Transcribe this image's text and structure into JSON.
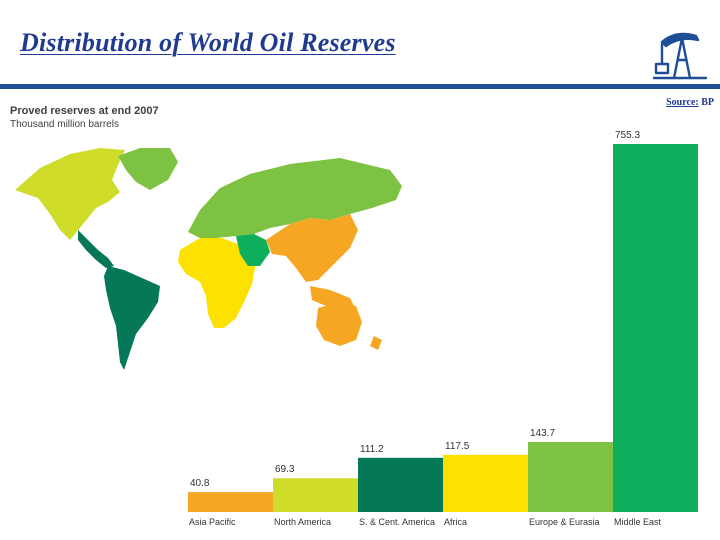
{
  "slide": {
    "title": "Distribution of World Oil Reserves",
    "source_label": "Source:",
    "source_value": "BP"
  },
  "icons": {
    "logo": "oil-pump-icon",
    "map": "world-map-image"
  },
  "colors": {
    "title": "#1f3a8f",
    "rule": "#1f4e96"
  },
  "chart_data": {
    "type": "bar",
    "title": "Proved reserves at end 2007",
    "subtitle": "Thousand million barrels",
    "categories": [
      "Asia Pacific",
      "North America",
      "S. & Cent. America",
      "Africa",
      "Europe & Eurasia",
      "Middle East"
    ],
    "values": [
      40.8,
      69.3,
      111.2,
      117.5,
      143.7,
      755.3
    ],
    "value_labels": [
      "40.8",
      "69.3",
      "111.2",
      "117.5",
      "143.7",
      "755.3"
    ],
    "colors": [
      "#f5a623",
      "#cfdc2a",
      "#047857",
      "#fde100",
      "#7dc242",
      "#0fae5c"
    ],
    "ylim": [
      0,
      755.3
    ],
    "grid": false,
    "legend": "none"
  }
}
